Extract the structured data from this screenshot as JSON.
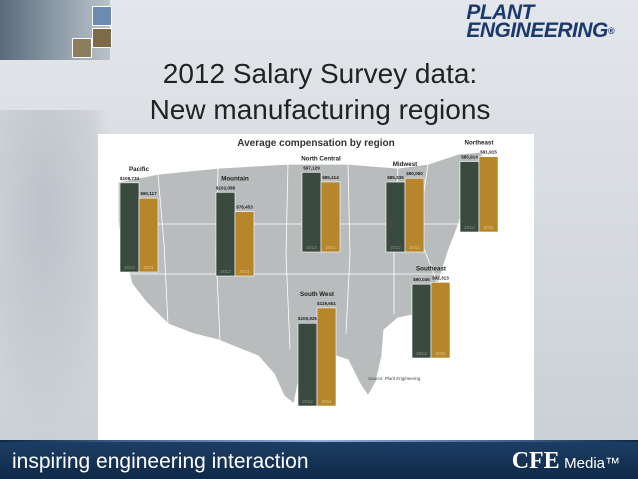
{
  "slide": {
    "title_line1": "2012 Salary Survey data:",
    "title_line2": "New manufacturing regions",
    "logo_line1": "PLANT",
    "logo_line2": "ENGINEERING",
    "logo_mark": "®",
    "footer_tagline": "inspiring engineering interaction",
    "footer_brand": "CFE",
    "footer_brand_suffix": "Media™",
    "source_note": "Source: Plant Engineering"
  },
  "chart_data": {
    "type": "bar",
    "title": "Average compensation by region",
    "series": [
      {
        "values": [
          108734,
          102088,
          97129,
          85335,
          85914,
          100926,
          90046
        ],
        "color": "#3a4a3e"
      },
      {
        "values": [
          90117,
          78453,
          85414,
          90060,
          91915,
          119651,
          92313
        ],
        "color": "#b8862a"
      }
    ],
    "categories": [
      "Pacific",
      "Mountain",
      "North Central",
      "Midwest",
      "Northeast",
      "South West",
      "Southeast"
    ],
    "value_labels": [
      [
        "$108,734",
        "$90,117"
      ],
      [
        "$102,088",
        "$78,453"
      ],
      [
        "$97,129",
        "$85,414"
      ],
      [
        "$85,335",
        "$90,060"
      ],
      [
        "$85,914",
        "$91,915"
      ],
      [
        "$100,926",
        "$119,651"
      ],
      [
        "$90,046",
        "$92,313"
      ]
    ],
    "bar_year_labels": [
      "2012",
      "2011"
    ],
    "map_color": "#b9bcbd",
    "map_outline": "#ffffff"
  }
}
